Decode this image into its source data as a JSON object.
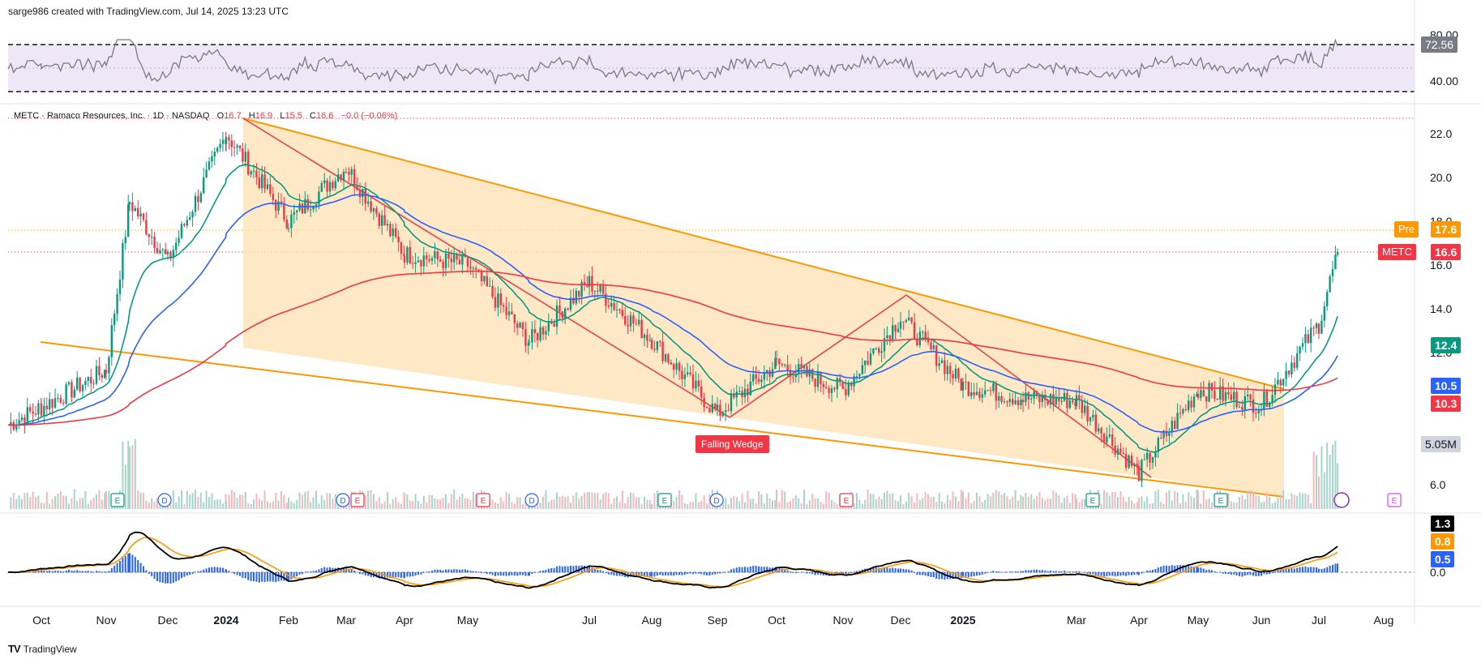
{
  "header": {
    "credit": "sarge986 created with TradingView.com, Jul 14, 2025 13:23 UTC"
  },
  "symbol": {
    "title": "METC · Ramaco Resources, Inc. · 1D · NASDAQ",
    "o_label": "O",
    "o": "16.7",
    "h_label": "H",
    "h": "16.9",
    "l_label": "L",
    "l": "15.5",
    "c_label": "C",
    "c": "16.6",
    "change": "−0.0 (−0.06%)"
  },
  "price_tags": {
    "pre_label": "Pre",
    "pre_value": "17.6",
    "sym_label": "METC",
    "last": "16.6",
    "ema_fast": "12.4",
    "ema_slow": "10.5",
    "ema_long": "10.3",
    "volume": "5.05M",
    "rsi_value": "72.56",
    "macd_1": "1.3",
    "macd_2": "0.8",
    "macd_3": "0.5"
  },
  "annotation": {
    "pattern_label": "Falling Wedge"
  },
  "branding": {
    "logo_text": "TradingView",
    "logo_mark": "TV"
  },
  "colors": {
    "up": "#089981",
    "down": "#f23645",
    "ema_fast": "#089981",
    "ema_slow": "#2962ff",
    "ema_long": "#f23645",
    "wedge": "#ff9800",
    "wedge_fill": "#ffe0b2",
    "rsi_band": "#ede7f6",
    "macd": "#000000",
    "signal": "#ff9800",
    "hist": "#2962ff"
  },
  "chart_data": {
    "type": "candlestick",
    "price_axis": {
      "ticks": [
        "22.0",
        "20.0",
        "18.0",
        "16.0",
        "14.0",
        "12.0",
        "6.0"
      ],
      "range": [
        5.0,
        23.0
      ]
    },
    "rsi_axis": {
      "ticks": [
        "80.00",
        "40.00"
      ],
      "levels": [
        70,
        30
      ]
    },
    "macd_axis": {
      "ticks": [
        "0.0"
      ]
    },
    "time_axis": [
      "Oct",
      "Nov",
      "Dec",
      "2024",
      "Feb",
      "Mar",
      "Apr",
      "May",
      "Jul",
      "Aug",
      "Sep",
      "Oct",
      "Nov",
      "Dec",
      "2025",
      "Mar",
      "Apr",
      "May",
      "Jun",
      "Jul",
      "Aug"
    ],
    "price_path": [
      [
        "Sep 2023",
        8.7
      ],
      [
        "Oct 2023",
        9.5
      ],
      [
        "Nov 2023",
        11.2
      ],
      [
        "Nov 2023",
        18.9
      ],
      [
        "Dec 2023",
        16.2
      ],
      [
        "Jan 2024",
        22.0
      ],
      [
        "Feb 2024",
        18.0
      ],
      [
        "Mar 2024",
        20.5
      ],
      [
        "Apr 2024",
        16.5
      ],
      [
        "May 2024",
        16.0
      ],
      [
        "Jun 2024",
        12.5
      ],
      [
        "Jul 2024",
        15.2
      ],
      [
        "Aug 2024",
        12.6
      ],
      [
        "Sep 2024",
        9.2
      ],
      [
        "Oct 2024",
        11.5
      ],
      [
        "Nov 2024",
        10.3
      ],
      [
        "Dec 2024",
        13.6
      ],
      [
        "Jan 2025",
        10.5
      ],
      [
        "Feb 2025",
        9.9
      ],
      [
        "Mar 2025",
        9.8
      ],
      [
        "Apr 2025",
        6.5
      ],
      [
        "May 2025",
        10.3
      ],
      [
        "Jun 2025",
        9.6
      ],
      [
        "Jul 2025",
        13.3
      ],
      [
        "Jul 2025",
        16.6
      ]
    ],
    "events": {
      "E": [
        "Nov 2023",
        "Mar 2024",
        "May 2024",
        "Aug 2024",
        "Nov 2024",
        "Mar 2025",
        "May 2025",
        "Aug 2025"
      ],
      "D": [
        "Dec 2023",
        "Mar 2024",
        "Jun 2024",
        "Sep 2024"
      ]
    }
  }
}
